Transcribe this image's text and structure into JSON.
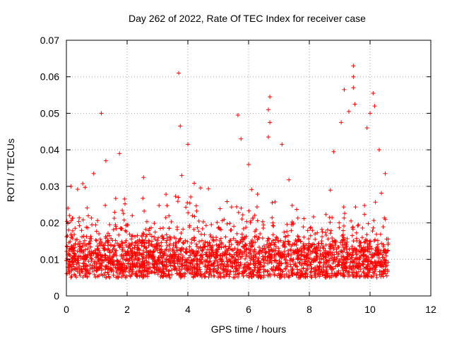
{
  "chart_data": {
    "type": "scatter",
    "title": "Day 262 of 2022, Rate Of TEC Index for receiver case",
    "xlabel": "GPS time / hours",
    "ylabel": "ROTI / TECUs",
    "xlim": [
      0,
      12
    ],
    "ylim": [
      0,
      0.07
    ],
    "xticks": [
      0,
      2,
      4,
      6,
      8,
      10,
      12
    ],
    "yticks": [
      0,
      0.01,
      0.02,
      0.03,
      0.04,
      0.05,
      0.06,
      0.07
    ],
    "ytick_labels": [
      "0",
      "0.01",
      "0.02",
      "0.03",
      "0.04",
      "0.05",
      "0.06",
      "0.07"
    ],
    "grid": true,
    "marker": "+",
    "color": "#ff0000",
    "x_range_of_data": [
      0,
      10.6
    ],
    "baseline_band": [
      0.005,
      0.017
    ],
    "notable_points": [
      {
        "x": 0.05,
        "y": 0.024
      },
      {
        "x": 0.15,
        "y": 0.03
      },
      {
        "x": 0.9,
        "y": 0.0335
      },
      {
        "x": 1.15,
        "y": 0.05
      },
      {
        "x": 1.3,
        "y": 0.037
      },
      {
        "x": 1.75,
        "y": 0.039
      },
      {
        "x": 3.7,
        "y": 0.061
      },
      {
        "x": 3.75,
        "y": 0.0465
      },
      {
        "x": 3.8,
        "y": 0.033
      },
      {
        "x": 4.0,
        "y": 0.0415
      },
      {
        "x": 5.65,
        "y": 0.0495
      },
      {
        "x": 5.75,
        "y": 0.043
      },
      {
        "x": 6.0,
        "y": 0.036
      },
      {
        "x": 6.7,
        "y": 0.0545
      },
      {
        "x": 6.65,
        "y": 0.051
      },
      {
        "x": 6.7,
        "y": 0.0475
      },
      {
        "x": 6.65,
        "y": 0.0435
      },
      {
        "x": 7.1,
        "y": 0.0415
      },
      {
        "x": 8.8,
        "y": 0.0395
      },
      {
        "x": 9.05,
        "y": 0.0475
      },
      {
        "x": 9.15,
        "y": 0.0565
      },
      {
        "x": 9.3,
        "y": 0.0505
      },
      {
        "x": 9.45,
        "y": 0.063
      },
      {
        "x": 9.45,
        "y": 0.06
      },
      {
        "x": 9.45,
        "y": 0.057
      },
      {
        "x": 9.5,
        "y": 0.0525
      },
      {
        "x": 9.9,
        "y": 0.046
      },
      {
        "x": 10.0,
        "y": 0.05
      },
      {
        "x": 10.1,
        "y": 0.0555
      },
      {
        "x": 10.15,
        "y": 0.052
      },
      {
        "x": 10.3,
        "y": 0.04
      },
      {
        "x": 10.5,
        "y": 0.0335
      }
    ]
  }
}
